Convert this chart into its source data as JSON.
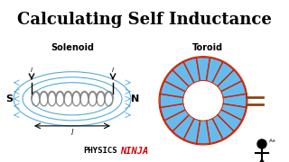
{
  "title": "Calculating Self Inductance",
  "title_bg": "#FFFF00",
  "title_color": "#000000",
  "bg_color": "#FFFFFF",
  "left_label": "Solenoid",
  "right_label": "Toroid",
  "brand_physics": "PHYSICS",
  "brand_ninja": "NINJA",
  "brand_ninja_color": "#CC0000",
  "s_label": "S",
  "n_label": "N",
  "l_label": "l",
  "i_label": "I",
  "solenoid_color": "#55AADD",
  "coil_color": "#888888",
  "toroid_fill": "#66BBEE",
  "toroid_ring": "#CC2200",
  "figsize": [
    3.2,
    1.8
  ],
  "dpi": 100
}
